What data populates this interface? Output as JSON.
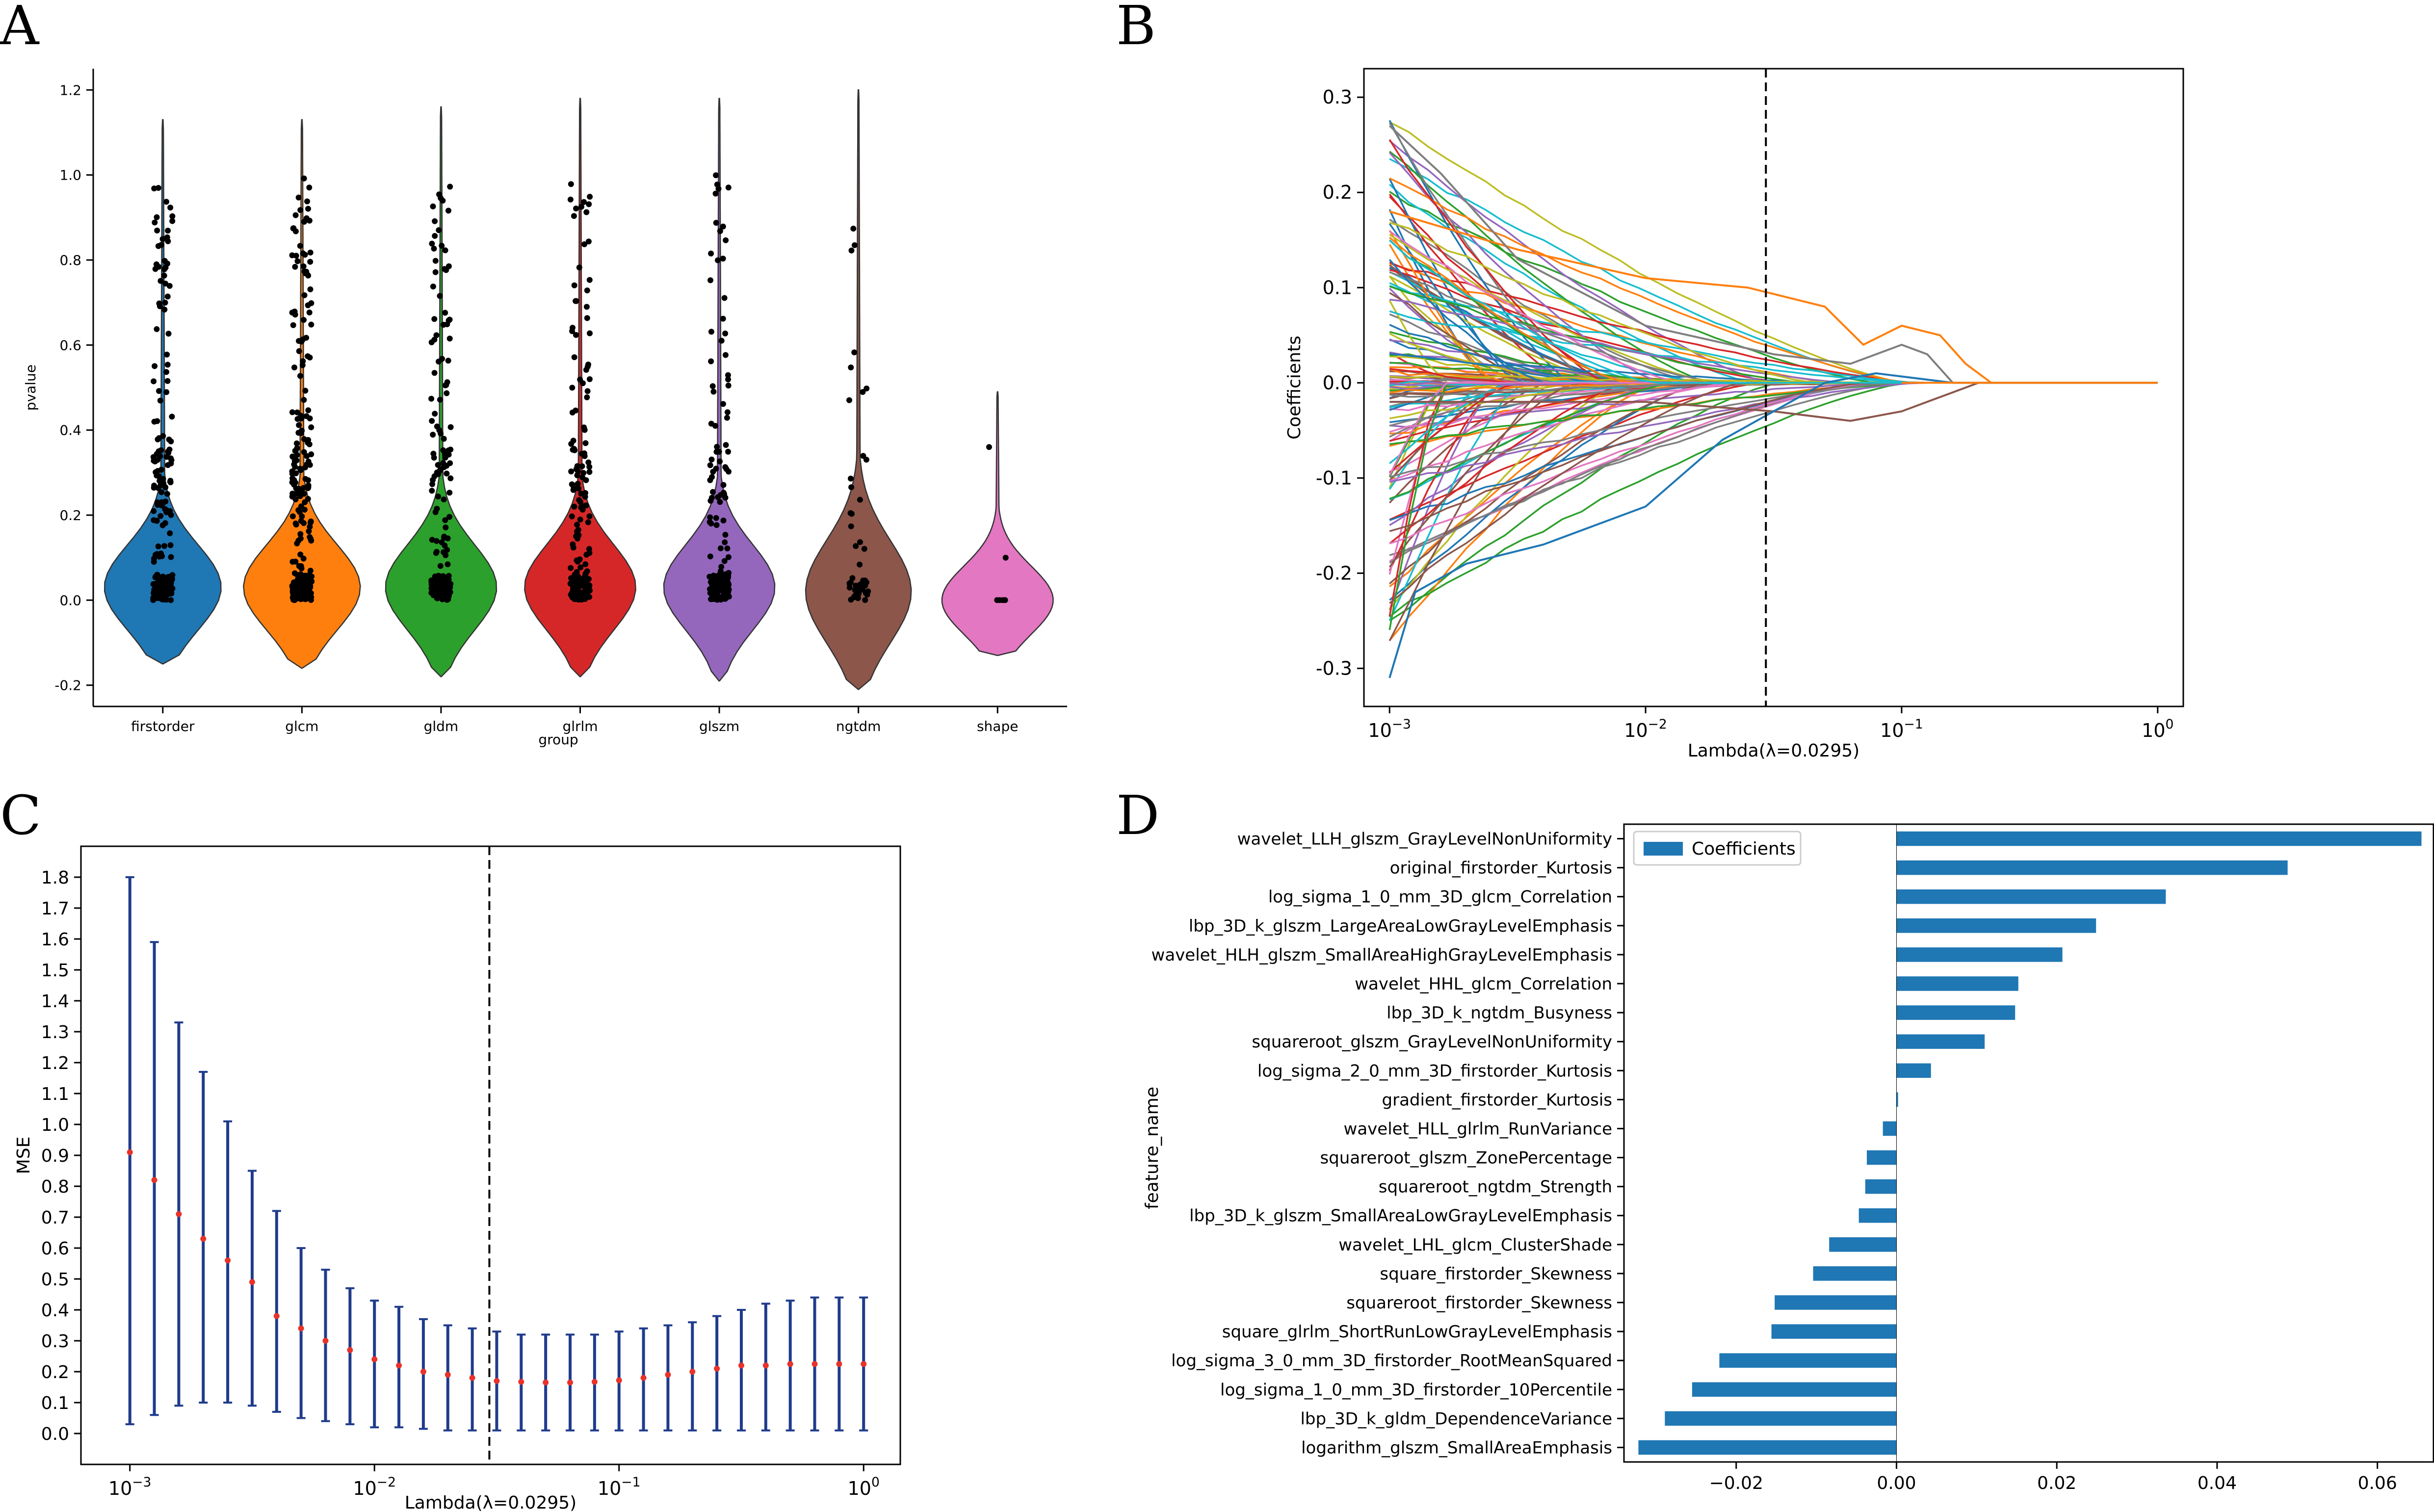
{
  "panel_labels": [
    "A",
    "B",
    "C",
    "D"
  ],
  "chart_data": [
    {
      "id": "A",
      "type": "violin",
      "title": "",
      "xlabel": "group",
      "ylabel": "pvalue",
      "ylim": [
        -0.25,
        1.25
      ],
      "yticks": [
        -0.2,
        0.0,
        0.2,
        0.4,
        0.6,
        0.8,
        1.0,
        1.2
      ],
      "ytick_labels": [
        "-0.2",
        "0.0",
        "0.2",
        "0.4",
        "0.6",
        "0.8",
        "1.0",
        "1.2"
      ],
      "categories": [
        "firstorder",
        "glcm",
        "gldm",
        "glrlm",
        "glszm",
        "ngtdm",
        "shape"
      ],
      "colors": [
        "#1f77b4",
        "#ff7f0e",
        "#2ca02c",
        "#d62728",
        "#9467bd",
        "#8c564b",
        "#e377c2"
      ],
      "violins": [
        {
          "min": -0.15,
          "max": 1.13,
          "mode": 0.03,
          "width": 0.42,
          "spread": 0.1
        },
        {
          "min": -0.16,
          "max": 1.13,
          "mode": 0.03,
          "width": 0.42,
          "spread": 0.1
        },
        {
          "min": -0.18,
          "max": 1.16,
          "mode": 0.03,
          "width": 0.4,
          "spread": 0.1
        },
        {
          "min": -0.18,
          "max": 1.18,
          "mode": 0.03,
          "width": 0.4,
          "spread": 0.1
        },
        {
          "min": -0.19,
          "max": 1.18,
          "mode": 0.03,
          "width": 0.4,
          "spread": 0.1
        },
        {
          "min": -0.21,
          "max": 1.2,
          "mode": 0.02,
          "width": 0.38,
          "spread": 0.12
        },
        {
          "min": -0.13,
          "max": 0.49,
          "mode": 0.0,
          "width": 0.4,
          "spread": 0.08
        }
      ],
      "point_counts": [
        210,
        260,
        170,
        180,
        160,
        45,
        6
      ]
    },
    {
      "id": "B",
      "type": "line",
      "title": "",
      "xlabel": "Lambda(λ=0.0295)",
      "ylabel": "Coefficients",
      "xscale": "log",
      "xlim_log10": [
        -3.1,
        0.1
      ],
      "ylim": [
        -0.34,
        0.33
      ],
      "xticks_log10": [
        -3,
        -2,
        -1,
        0
      ],
      "xtick_labels": [
        "10",
        "10",
        "10",
        "10"
      ],
      "xtick_exponents": [
        "−3",
        "−2",
        "−1",
        "0"
      ],
      "yticks": [
        -0.3,
        -0.2,
        -0.1,
        0.0,
        0.1,
        0.2,
        0.3
      ],
      "ytick_labels": [
        "-0.3",
        "-0.2",
        "-0.1",
        "0.0",
        "0.1",
        "0.2",
        "0.3"
      ],
      "vline_lambda": 0.0295,
      "series_count": 140,
      "series_colors": [
        "#1f77b4",
        "#ff7f0e",
        "#2ca02c",
        "#d62728",
        "#9467bd",
        "#8c564b",
        "#e377c2",
        "#7f7f7f",
        "#bcbd22",
        "#17becf"
      ],
      "highlighted_series": [
        {
          "name": "s1",
          "color": "#ff7f0e",
          "points": [
            [
              -3,
              0.18
            ],
            [
              -2.5,
              0.14
            ],
            [
              -2,
              0.11
            ],
            [
              -1.6,
              0.1
            ],
            [
              -1.3,
              0.08
            ],
            [
              -1.15,
              0.04
            ],
            [
              -1,
              0.06
            ],
            [
              -0.85,
              0.05
            ],
            [
              -0.75,
              0.02
            ],
            [
              -0.65,
              0
            ]
          ]
        },
        {
          "name": "s2",
          "color": "#7f7f7f",
          "points": [
            [
              -3,
              0.27
            ],
            [
              -2.8,
              0.22
            ],
            [
              -2.5,
              0.13
            ],
            [
              -2,
              0.06
            ],
            [
              -1.5,
              0.03
            ],
            [
              -1.2,
              0.02
            ],
            [
              -1,
              0.04
            ],
            [
              -0.9,
              0.03
            ],
            [
              -0.8,
              0
            ]
          ]
        },
        {
          "name": "s3",
          "color": "#8c564b",
          "points": [
            [
              -3,
              -0.02
            ],
            [
              -2,
              -0.02
            ],
            [
              -1.5,
              -0.03
            ],
            [
              -1.2,
              -0.04
            ],
            [
              -1,
              -0.03
            ],
            [
              -0.8,
              -0.01
            ],
            [
              -0.7,
              0
            ]
          ]
        },
        {
          "name": "s4",
          "color": "#1f77b4",
          "points": [
            [
              -3,
              -0.31
            ],
            [
              -2.9,
              -0.22
            ],
            [
              -2.7,
              -0.19
            ],
            [
              -2.4,
              -0.17
            ],
            [
              -2,
              -0.13
            ],
            [
              -1.7,
              -0.06
            ],
            [
              -1.5,
              -0.03
            ],
            [
              -1.3,
              0
            ],
            [
              -1.1,
              0.01
            ],
            [
              -0.8,
              0
            ]
          ]
        }
      ]
    },
    {
      "id": "C",
      "type": "errorbar",
      "title": "",
      "xlabel": "Lambda(λ=0.0295)",
      "ylabel": "MSE",
      "xscale": "log",
      "xlim_log10": [
        -3.2,
        0.15
      ],
      "ylim": [
        -0.1,
        1.9
      ],
      "xticks_log10": [
        -3,
        -2,
        -1,
        0
      ],
      "xtick_labels": [
        "10",
        "10",
        "10",
        "10"
      ],
      "xtick_exponents": [
        "−3",
        "−2",
        "−1",
        "0"
      ],
      "yticks": [
        0.0,
        0.1,
        0.2,
        0.3,
        0.4,
        0.5,
        0.6,
        0.7,
        0.8,
        0.9,
        1.0,
        1.1,
        1.2,
        1.3,
        1.4,
        1.5,
        1.6,
        1.7,
        1.8
      ],
      "ytick_labels": [
        "0.0",
        "0.1",
        "0.2",
        "0.3",
        "0.4",
        "0.5",
        "0.6",
        "0.7",
        "0.8",
        "0.9",
        "1.0",
        "1.1",
        "1.2",
        "1.3",
        "1.4",
        "1.5",
        "1.6",
        "1.7",
        "1.8"
      ],
      "vline_lambda": 0.0295,
      "x_log10": [
        -3.0,
        -2.9,
        -2.8,
        -2.7,
        -2.6,
        -2.5,
        -2.4,
        -2.3,
        -2.2,
        -2.1,
        -2.0,
        -1.9,
        -1.8,
        -1.7,
        -1.6,
        -1.5,
        -1.4,
        -1.3,
        -1.2,
        -1.1,
        -1.0,
        -0.9,
        -0.8,
        -0.7,
        -0.6,
        -0.5,
        -0.4,
        -0.3,
        -0.2,
        -0.1,
        0.0
      ],
      "mean": [
        0.91,
        0.82,
        0.71,
        0.63,
        0.56,
        0.49,
        0.38,
        0.34,
        0.3,
        0.27,
        0.24,
        0.22,
        0.2,
        0.19,
        0.18,
        0.17,
        0.167,
        0.165,
        0.165,
        0.167,
        0.172,
        0.18,
        0.19,
        0.2,
        0.21,
        0.22,
        0.22,
        0.225,
        0.225,
        0.225,
        0.225
      ],
      "lower": [
        0.03,
        0.06,
        0.09,
        0.1,
        0.1,
        0.09,
        0.07,
        0.05,
        0.04,
        0.03,
        0.02,
        0.02,
        0.015,
        0.01,
        0.01,
        0.01,
        0.01,
        0.01,
        0.01,
        0.01,
        0.01,
        0.01,
        0.01,
        0.01,
        0.01,
        0.01,
        0.01,
        0.01,
        0.01,
        0.01,
        0.01
      ],
      "upper": [
        1.8,
        1.59,
        1.33,
        1.17,
        1.01,
        0.85,
        0.72,
        0.6,
        0.53,
        0.47,
        0.43,
        0.41,
        0.37,
        0.35,
        0.34,
        0.33,
        0.32,
        0.32,
        0.32,
        0.32,
        0.33,
        0.34,
        0.35,
        0.36,
        0.38,
        0.4,
        0.42,
        0.43,
        0.44,
        0.44,
        0.44
      ],
      "errorbar_color": "#1f3b8c",
      "marker_color": "#e8322a"
    },
    {
      "id": "D",
      "type": "barh",
      "title": "",
      "xlabel": "",
      "ylabel": "feature_name",
      "legend": "Coefficients",
      "bar_color": "#1f77b4",
      "xlim": [
        -0.034,
        0.067
      ],
      "xticks": [
        -0.02,
        0.0,
        0.02,
        0.04,
        0.06
      ],
      "xtick_labels": [
        "−0.02",
        "0.00",
        "0.02",
        "0.04",
        "0.06"
      ],
      "categories": [
        "wavelet_LLH_glszm_GrayLevelNonUniformity",
        "original_firstorder_Kurtosis",
        "log_sigma_1_0_mm_3D_glcm_Correlation",
        "lbp_3D_k_glszm_LargeAreaLowGrayLevelEmphasis",
        "wavelet_HLH_glszm_SmallAreaHighGrayLevelEmphasis",
        "wavelet_HHL_glcm_Correlation",
        "lbp_3D_k_ngtdm_Busyness",
        "squareroot_glszm_GrayLevelNonUniformity",
        "log_sigma_2_0_mm_3D_firstorder_Kurtosis",
        "gradient_firstorder_Kurtosis",
        "wavelet_HLL_glrlm_RunVariance",
        "squareroot_glszm_ZonePercentage",
        "squareroot_ngtdm_Strength",
        "lbp_3D_k_glszm_SmallAreaLowGrayLevelEmphasis",
        "wavelet_LHL_glcm_ClusterShade",
        "square_firstorder_Skewness",
        "squareroot_firstorder_Skewness",
        "square_glrlm_ShortRunLowGrayLevelEmphasis",
        "log_sigma_3_0_mm_3D_firstorder_RootMeanSquared",
        "log_sigma_1_0_mm_3D_firstorder_10Percentile",
        "lbp_3D_k_gldm_DependenceVariance",
        "logarithm_glszm_SmallAreaEmphasis"
      ],
      "values": [
        0.0655,
        0.0488,
        0.0336,
        0.0249,
        0.0207,
        0.0152,
        0.0148,
        0.011,
        0.0043,
        0.0002,
        -0.0017,
        -0.0037,
        -0.0039,
        -0.0047,
        -0.0084,
        -0.0104,
        -0.0152,
        -0.0156,
        -0.0221,
        -0.0255,
        -0.0289,
        -0.0322
      ]
    }
  ]
}
